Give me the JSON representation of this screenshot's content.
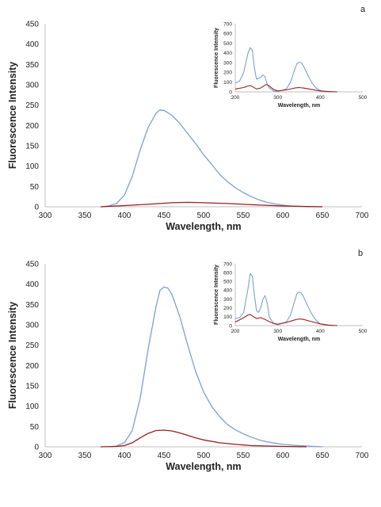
{
  "colors": {
    "series_a": "#7b9fd8",
    "series_b": "#9a1e1e",
    "axis": "#bfbfbf"
  },
  "panels": [
    {
      "label": "a"
    },
    {
      "label": "b"
    }
  ],
  "chart_data": [
    {
      "panel": "a",
      "role": "main",
      "type": "line",
      "title": "",
      "xlabel": "Wavelength, nm",
      "ylabel": "Fluorescence Intensity",
      "xlim": [
        300,
        700
      ],
      "ylim": [
        0,
        450
      ],
      "xticks": [
        300,
        350,
        400,
        450,
        500,
        550,
        600,
        650,
        700
      ],
      "yticks": [
        0,
        50,
        100,
        150,
        200,
        250,
        300,
        350,
        400,
        450
      ],
      "grid": false,
      "legend": "none",
      "series": [
        {
          "color": "series_a",
          "x": [
            370,
            380,
            390,
            400,
            410,
            420,
            430,
            440,
            445,
            450,
            460,
            470,
            480,
            490,
            500,
            510,
            520,
            530,
            540,
            550,
            560,
            570,
            580,
            590,
            600,
            610,
            620,
            630,
            650
          ],
          "y": [
            0,
            2,
            8,
            28,
            75,
            140,
            195,
            230,
            238,
            237,
            225,
            205,
            180,
            155,
            128,
            105,
            80,
            62,
            47,
            35,
            25,
            17,
            11,
            7,
            4,
            2,
            1,
            0,
            0
          ]
        },
        {
          "color": "series_b",
          "x": [
            370,
            400,
            430,
            460,
            480,
            500,
            530,
            560,
            600,
            650
          ],
          "y": [
            0,
            3,
            6,
            10,
            11,
            10,
            8,
            5,
            2,
            0
          ]
        }
      ]
    },
    {
      "panel": "a",
      "role": "inset",
      "type": "line",
      "title": "",
      "xlabel": "Wavelength, nm",
      "ylabel": "Fluorescence Intensity",
      "xlim": [
        200,
        500
      ],
      "ylim": [
        0,
        700
      ],
      "xticks": [
        200,
        300,
        400,
        500
      ],
      "yticks": [
        0,
        100,
        200,
        300,
        400,
        500,
        600,
        700
      ],
      "grid": false,
      "legend": "none",
      "series": [
        {
          "color": "series_a",
          "x": [
            200,
            210,
            220,
            230,
            235,
            240,
            245,
            250,
            260,
            265,
            270,
            275,
            280,
            290,
            300,
            320,
            330,
            340,
            345,
            350,
            355,
            360,
            370,
            380,
            390,
            400,
            410,
            420,
            430
          ],
          "y": [
            90,
            110,
            200,
            400,
            455,
            430,
            250,
            130,
            150,
            175,
            155,
            80,
            40,
            10,
            5,
            30,
            100,
            230,
            290,
            305,
            300,
            270,
            180,
            95,
            40,
            15,
            5,
            2,
            0
          ]
        },
        {
          "color": "series_b",
          "x": [
            200,
            220,
            230,
            235,
            240,
            250,
            260,
            270,
            275,
            280,
            290,
            300,
            320,
            340,
            350,
            360,
            380,
            400,
            420,
            440
          ],
          "y": [
            30,
            45,
            60,
            65,
            55,
            30,
            40,
            70,
            75,
            60,
            25,
            10,
            20,
            40,
            45,
            40,
            25,
            10,
            3,
            0
          ]
        }
      ]
    },
    {
      "panel": "b",
      "role": "main",
      "type": "line",
      "title": "",
      "xlabel": "Wavelength, nm",
      "ylabel": "Fluorescence Intensity",
      "xlim": [
        300,
        700
      ],
      "ylim": [
        0,
        450
      ],
      "xticks": [
        300,
        350,
        400,
        450,
        500,
        550,
        600,
        650,
        700
      ],
      "yticks": [
        0,
        50,
        100,
        150,
        200,
        250,
        300,
        350,
        400,
        450
      ],
      "grid": false,
      "legend": "none",
      "series": [
        {
          "color": "series_a",
          "x": [
            380,
            390,
            400,
            410,
            420,
            430,
            440,
            445,
            450,
            455,
            460,
            470,
            480,
            490,
            500,
            510,
            520,
            530,
            540,
            550,
            560,
            570,
            580,
            600,
            620,
            650
          ],
          "y": [
            0,
            2,
            10,
            40,
            120,
            240,
            345,
            385,
            393,
            390,
            375,
            320,
            250,
            185,
            135,
            100,
            75,
            55,
            42,
            32,
            24,
            17,
            12,
            6,
            3,
            0
          ]
        },
        {
          "color": "series_b",
          "x": [
            370,
            390,
            400,
            410,
            420,
            430,
            440,
            450,
            460,
            470,
            480,
            490,
            500,
            520,
            540,
            560,
            580,
            600,
            630
          ],
          "y": [
            0,
            1,
            3,
            10,
            22,
            33,
            40,
            41,
            39,
            34,
            28,
            22,
            17,
            10,
            6,
            3,
            2,
            1,
            0
          ]
        }
      ]
    },
    {
      "panel": "b",
      "role": "inset",
      "type": "line",
      "title": "",
      "xlabel": "Wavelength, nm",
      "ylabel": "Fluorescence Intensity",
      "xlim": [
        200,
        500
      ],
      "ylim": [
        0,
        700
      ],
      "xticks": [
        200,
        300,
        400,
        500
      ],
      "yticks": [
        0,
        100,
        200,
        300,
        400,
        500,
        600,
        700
      ],
      "grid": false,
      "legend": "none",
      "series": [
        {
          "color": "series_a",
          "x": [
            200,
            210,
            220,
            230,
            235,
            240,
            245,
            250,
            255,
            260,
            265,
            270,
            275,
            280,
            290,
            300,
            320,
            330,
            340,
            345,
            350,
            355,
            360,
            370,
            380,
            390,
            400,
            410,
            430
          ],
          "y": [
            80,
            90,
            150,
            420,
            590,
            560,
            350,
            170,
            150,
            200,
            300,
            340,
            260,
            100,
            25,
            10,
            40,
            120,
            280,
            360,
            380,
            370,
            330,
            230,
            130,
            60,
            20,
            8,
            0
          ]
        },
        {
          "color": "series_b",
          "x": [
            200,
            220,
            230,
            235,
            240,
            250,
            260,
            270,
            280,
            290,
            300,
            320,
            340,
            350,
            360,
            380,
            400,
            420,
            440
          ],
          "y": [
            40,
            90,
            120,
            125,
            110,
            80,
            90,
            70,
            45,
            25,
            15,
            35,
            65,
            75,
            70,
            45,
            20,
            5,
            0
          ]
        }
      ]
    }
  ]
}
